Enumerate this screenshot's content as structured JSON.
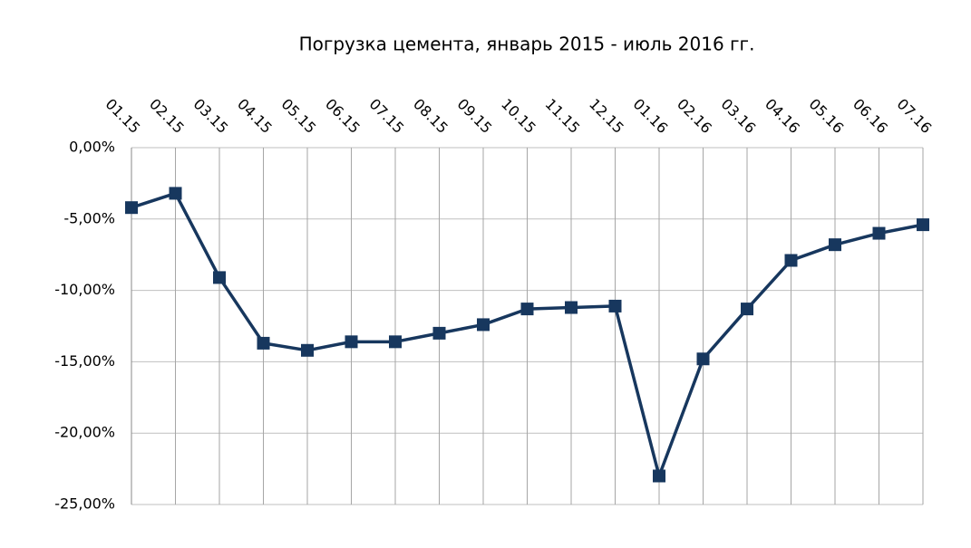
{
  "chart_data": {
    "type": "line",
    "title": "Погрузка цемента, январь 2015 - июль 2016 гг.",
    "categories": [
      "01.15",
      "02.15",
      "03.15",
      "04.15",
      "05.15",
      "06.15",
      "07.15",
      "08.15",
      "09.15",
      "10.15",
      "11.15",
      "12.15",
      "01.16",
      "02.16",
      "03.16",
      "04.16",
      "05.16",
      "06.16",
      "07.16"
    ],
    "series": [
      {
        "name": "Погрузка цемента",
        "color": "#17375e",
        "values": [
          -4.2,
          -3.2,
          -9.1,
          -13.7,
          -14.2,
          -13.6,
          -13.6,
          -13.0,
          -12.4,
          -11.3,
          -11.2,
          -11.1,
          -23.0,
          -14.8,
          -11.3,
          -7.9,
          -6.8,
          -6.0,
          -5.4
        ]
      }
    ],
    "ylim": [
      -25,
      0
    ],
    "yticks": [
      {
        "value": 0,
        "label": "0,00%"
      },
      {
        "value": -5,
        "label": "-5,00%"
      },
      {
        "value": -10,
        "label": "-10,00%"
      },
      {
        "value": -15,
        "label": "-15,00%"
      },
      {
        "value": -20,
        "label": "-20,00%"
      },
      {
        "value": -25,
        "label": "-25,00%"
      }
    ],
    "grid": true
  }
}
